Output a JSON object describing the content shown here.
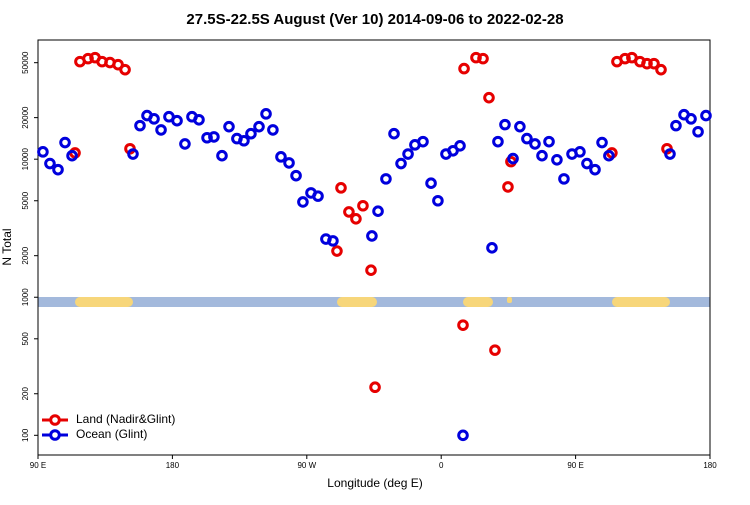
{
  "chart_data": {
    "type": "scatter",
    "title": "27.5S-22.5S August (Ver 10)   2014-09-06 to 2022-02-28",
    "xlabel": "Longitude (deg E)",
    "ylabel": "N Total",
    "log_y": true,
    "legend": "lower left",
    "xlim": [
      90,
      540
    ],
    "ylim": [
      72,
      73000
    ],
    "xticks": [
      {
        "value": 90,
        "label": "90 E"
      },
      {
        "value": 180,
        "label": "180"
      },
      {
        "value": 270,
        "label": "90 W"
      },
      {
        "value": 360,
        "label": "0"
      },
      {
        "value": 450,
        "label": "90 E"
      },
      {
        "value": 540,
        "label": "180"
      }
    ],
    "yticks": [
      100,
      200,
      500,
      1000,
      2000,
      5000,
      10000,
      20000,
      50000
    ],
    "series": [
      {
        "name": "Land (Nadir&Glint)",
        "color": "#e60000",
        "x": [
          114.8,
          118.1,
          123.5,
          128.2,
          132.9,
          138.2,
          143.6,
          148.3,
          151.6,
          292.9,
          298.2,
          302.9,
          307.6,
          290.2,
          313.0,
          315.7,
          374.6,
          375.3,
          383.3,
          388.0,
          392.0,
          396.0,
          404.7,
          406.7,
          474.3,
          477.7,
          483.1,
          487.7,
          493.1,
          497.8,
          502.5,
          507.2,
          511.2
        ],
        "values": [
          11100,
          50900,
          53500,
          54400,
          50900,
          50100,
          48400,
          44500,
          11900,
          6200,
          4150,
          3700,
          4600,
          2160,
          1570,
          223,
          628,
          45300,
          54400,
          53500,
          27900,
          414,
          6300,
          9600,
          11100,
          50900,
          53500,
          54400,
          50900,
          49200,
          49200,
          44500,
          11900
        ]
      },
      {
        "name": "Ocean (Glint)",
        "color": "#0000dd",
        "x": [
          93.3,
          98.0,
          103.4,
          108.1,
          112.8,
          153.6,
          158.3,
          163.0,
          167.7,
          172.4,
          177.7,
          183.1,
          188.4,
          193.1,
          197.8,
          203.2,
          207.8,
          213.2,
          217.9,
          223.2,
          227.9,
          232.6,
          238.0,
          242.7,
          247.3,
          252.7,
          258.1,
          262.8,
          267.4,
          272.8,
          277.5,
          282.8,
          287.5,
          313.6,
          317.7,
          323.0,
          328.4,
          333.1,
          337.8,
          342.4,
          347.8,
          353.2,
          357.8,
          363.2,
          367.9,
          372.6,
          374.6,
          394.0,
          398.0,
          402.7,
          408.1,
          412.7,
          417.4,
          422.8,
          427.5,
          432.2,
          437.5,
          442.2,
          447.6,
          452.9,
          457.6,
          463.0,
          467.7,
          472.3,
          513.2,
          517.2,
          522.6,
          527.3,
          532.0,
          537.3
        ],
        "values": [
          11300,
          9300,
          8400,
          13200,
          10600,
          10900,
          17500,
          20700,
          19600,
          16300,
          20300,
          19000,
          12900,
          20300,
          19300,
          14300,
          14500,
          10600,
          17200,
          14100,
          13600,
          15300,
          17200,
          21300,
          16300,
          10400,
          9400,
          7600,
          4900,
          5700,
          5400,
          2640,
          2560,
          2780,
          4200,
          7200,
          15300,
          9300,
          10900,
          12700,
          13400,
          6700,
          5000,
          10900,
          11500,
          12500,
          100,
          2280,
          13400,
          17800,
          10100,
          17200,
          14100,
          12900,
          10600,
          13400,
          9900,
          7200,
          10900,
          11300,
          9300,
          8400,
          13200,
          10600,
          10900,
          17500,
          21000,
          19600,
          15800,
          20700
        ]
      }
    ]
  }
}
